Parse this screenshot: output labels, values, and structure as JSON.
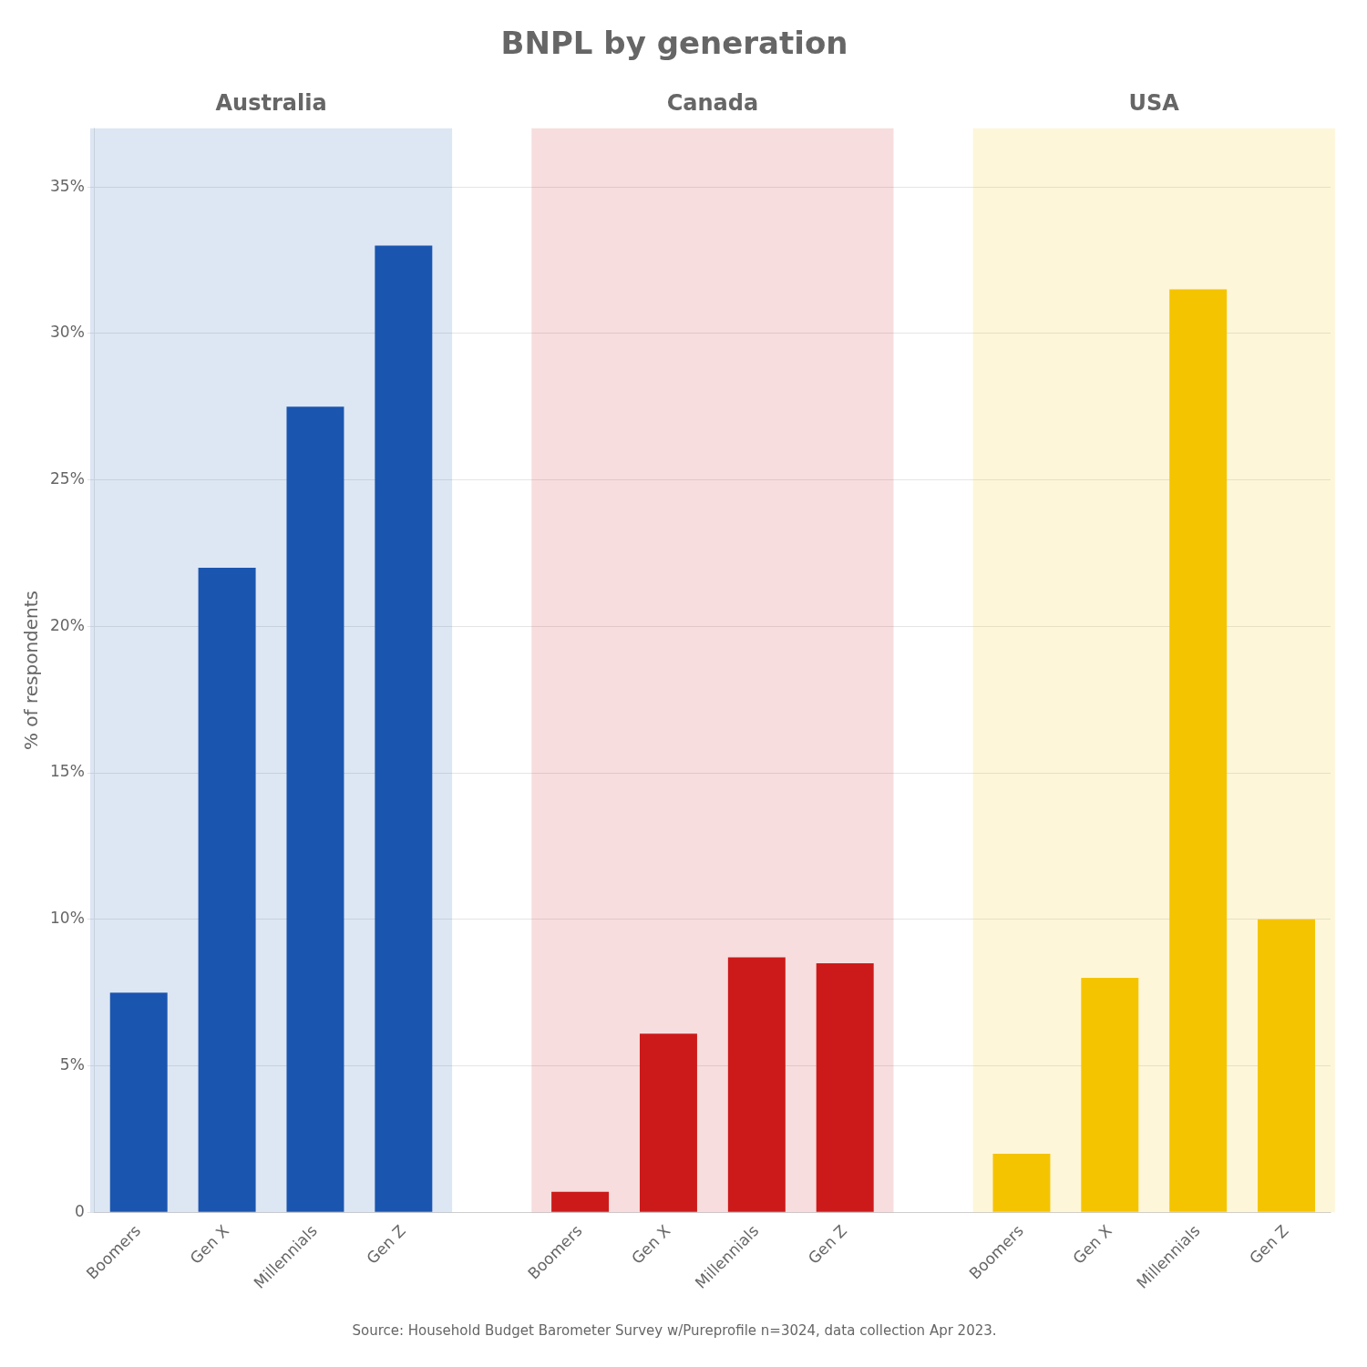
{
  "chart_data": {
    "type": "bar",
    "title": "BNPL by generation",
    "y_label": "% of respondents",
    "annotations": [
      "Source: Household Budget Barometer Survey w/Pureprofile n=3024, data collection Apr 2023."
    ],
    "categories": [
      "Boomers",
      "Gen X",
      "Millennials",
      "Gen Z"
    ],
    "series": [
      {
        "name": "Australia",
        "color": "#1a56b0",
        "values": [
          7.5,
          22.0,
          27.5,
          33.0
        ]
      },
      {
        "name": "Canada",
        "color": "#cc1a1a",
        "values": [
          0.7,
          6.1,
          8.7,
          8.5
        ]
      },
      {
        "name": "USA",
        "color": "#f5c400",
        "values": [
          2.0,
          8.0,
          31.5,
          10.0
        ]
      }
    ],
    "ylim": [
      0,
      37
    ],
    "yticks": [
      0,
      {
        "value": 5,
        "label": "5%"
      },
      {
        "value": 10,
        "label": "10%"
      },
      {
        "value": 15,
        "label": "15%"
      },
      {
        "value": 20,
        "label": "20%"
      },
      {
        "value": 25,
        "label": "25%"
      },
      {
        "value": 30,
        "label": "30%"
      },
      {
        "value": 35,
        "label": "35%"
      }
    ],
    "grid": true
  }
}
